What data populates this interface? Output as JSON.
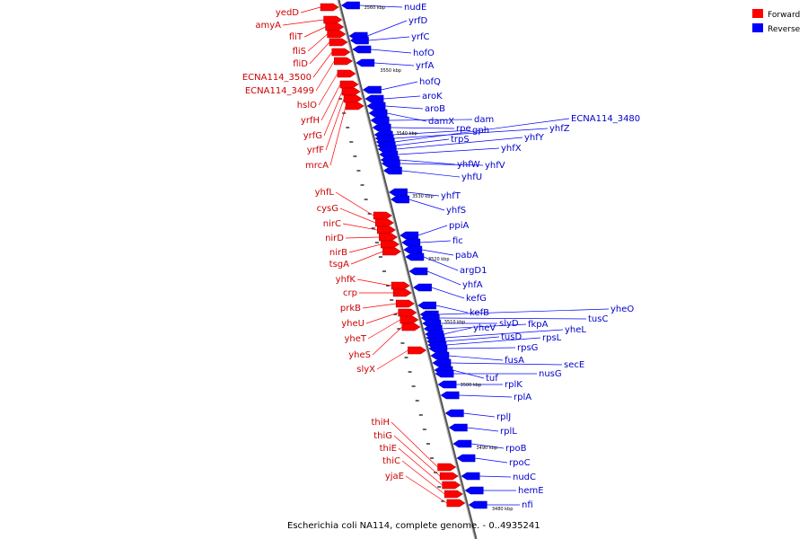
{
  "caption": "Escherichia coli NA114, complete genome. - 0..4935241",
  "colors": {
    "forward": "#ff0000",
    "reverse": "#0000ff",
    "axis": "#999999"
  },
  "legend": [
    {
      "label": "Forward",
      "color": "#ff0000"
    },
    {
      "label": "Reverse",
      "color": "#0000ff"
    }
  ],
  "scale_ticks": [
    "3560 kbp",
    "3550 kbp",
    "3540 kbp",
    "3530 kbp",
    "3520 kbp",
    "3510 kbp",
    "3500 kbp",
    "3490 kbp",
    "3480 kbp"
  ],
  "forward_genes": [
    "yedD",
    "amyA",
    "fliT",
    "fliS",
    "fliD",
    "ECNA114_3500",
    "ECNA114_3499",
    "hslO",
    "yrfH",
    "yrfG",
    "yrfF",
    "mrcA",
    "yhfL",
    "cysG",
    "nirC",
    "nirD",
    "nirB",
    "tsgA",
    "yhfK",
    "crp",
    "prkB",
    "yheU",
    "yheT",
    "yheS",
    "slyX",
    "thiH",
    "thiG",
    "thiE",
    "thiC",
    "yjaE"
  ],
  "reverse_genes": [
    "nudE",
    "yrfD",
    "yrfC",
    "hofO",
    "yrfA",
    "hofQ",
    "aroK",
    "aroB",
    "damX",
    "dam",
    "rpe",
    "gph",
    "ECNA114_3480",
    "yhfZ",
    "trpS",
    "yhfY",
    "yhfX",
    "yhfW",
    "yhfV",
    "yhfU",
    "yhfT",
    "yhfS",
    "ppiA",
    "fic",
    "pabA",
    "argD1",
    "yhfA",
    "kefG",
    "kefB",
    "yheO",
    "tusC",
    "slyD",
    "fkpA",
    "yheV",
    "yheL",
    "tusD",
    "rpsL",
    "rpsG",
    "fusA",
    "secE",
    "tuf",
    "nusG",
    "rplK",
    "rplA",
    "rplJ",
    "rplL",
    "rpoB",
    "rpoC",
    "nudC",
    "hemE",
    "nfi"
  ]
}
